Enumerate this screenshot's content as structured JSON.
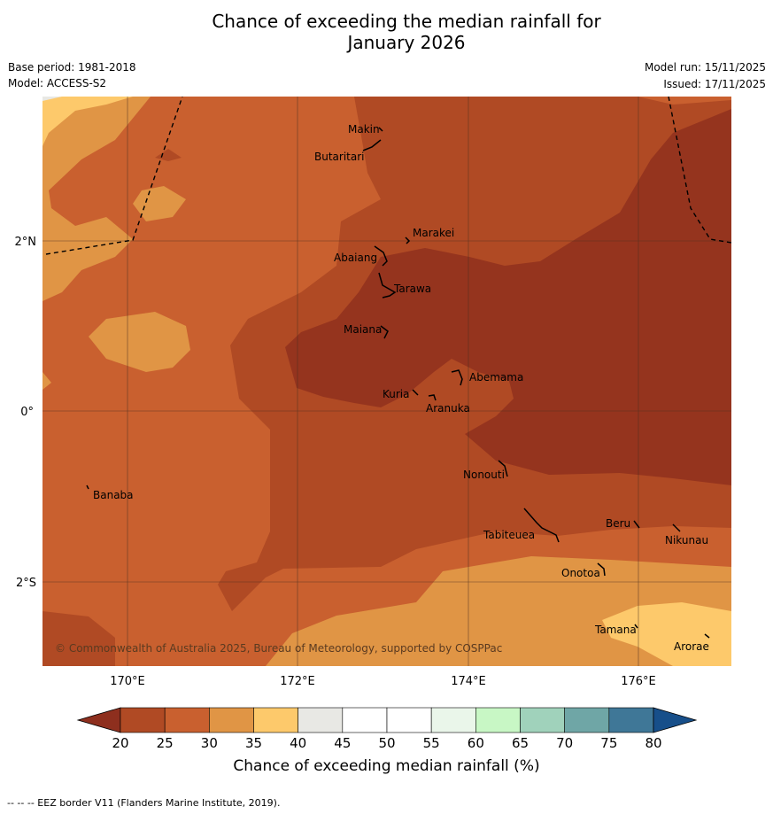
{
  "title_line1": "Chance of exceeding the median rainfall for",
  "title_line2": "January 2026",
  "base_period": "Base period: 1981-2018",
  "model": "Model: ACCESS-S2",
  "model_run": "Model run: 15/11/2025",
  "issued": "Issued: 17/11/2025",
  "copyright": "© Commonwealth of Australia 2025, Bureau of Meteorology, supported by COSPPac",
  "footer": "--  --  -- EEZ border V11 (Flanders Marine Institute, 2019).",
  "lon_labels": [
    "170°E",
    "172°E",
    "174°E",
    "176°E"
  ],
  "lat_labels": [
    "2°N",
    "0°",
    "2°S"
  ],
  "islands": [
    "Makin",
    "Butaritari",
    "Marakei",
    "Abaiang",
    "Tarawa",
    "Maiana",
    "Abemama",
    "Kuria",
    "Aranuka",
    "Nonouti",
    "Banaba",
    "Beru",
    "Tabiteuea",
    "Nikunau",
    "Onotoa",
    "Tamana",
    "Arorae"
  ],
  "colorbar": {
    "title": "Chance of exceeding median rainfall (%)",
    "ticks": [
      "20",
      "25",
      "30",
      "35",
      "40",
      "45",
      "50",
      "55",
      "60",
      "65",
      "70",
      "75",
      "80"
    ],
    "colors": [
      "#b04a24",
      "#c9602f",
      "#e09545",
      "#fdc96b",
      "#e8e8e4",
      "#ffffff",
      "#ffffff",
      "#eaf6ea",
      "#c8f7c5",
      "#a0d2bb",
      "#6fa6a6",
      "#3f7797"
    ],
    "under_color": "#8e2f1e",
    "over_color": "#174f8a"
  },
  "legend_colors": {
    "c20": "#95341e",
    "c25": "#b04a24",
    "c30": "#c9602f",
    "c35": "#e09545",
    "c40": "#fdc96b"
  }
}
